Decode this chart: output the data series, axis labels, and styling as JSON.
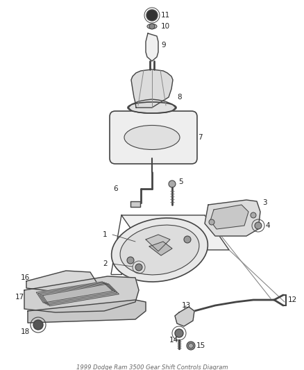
{
  "title": "1999 Dodge Ram 3500 Gear Shift Controls Diagram",
  "bg_color": "#ffffff",
  "line_color": "#444444",
  "label_color": "#111111",
  "fig_width": 4.38,
  "fig_height": 5.33,
  "dpi": 100
}
